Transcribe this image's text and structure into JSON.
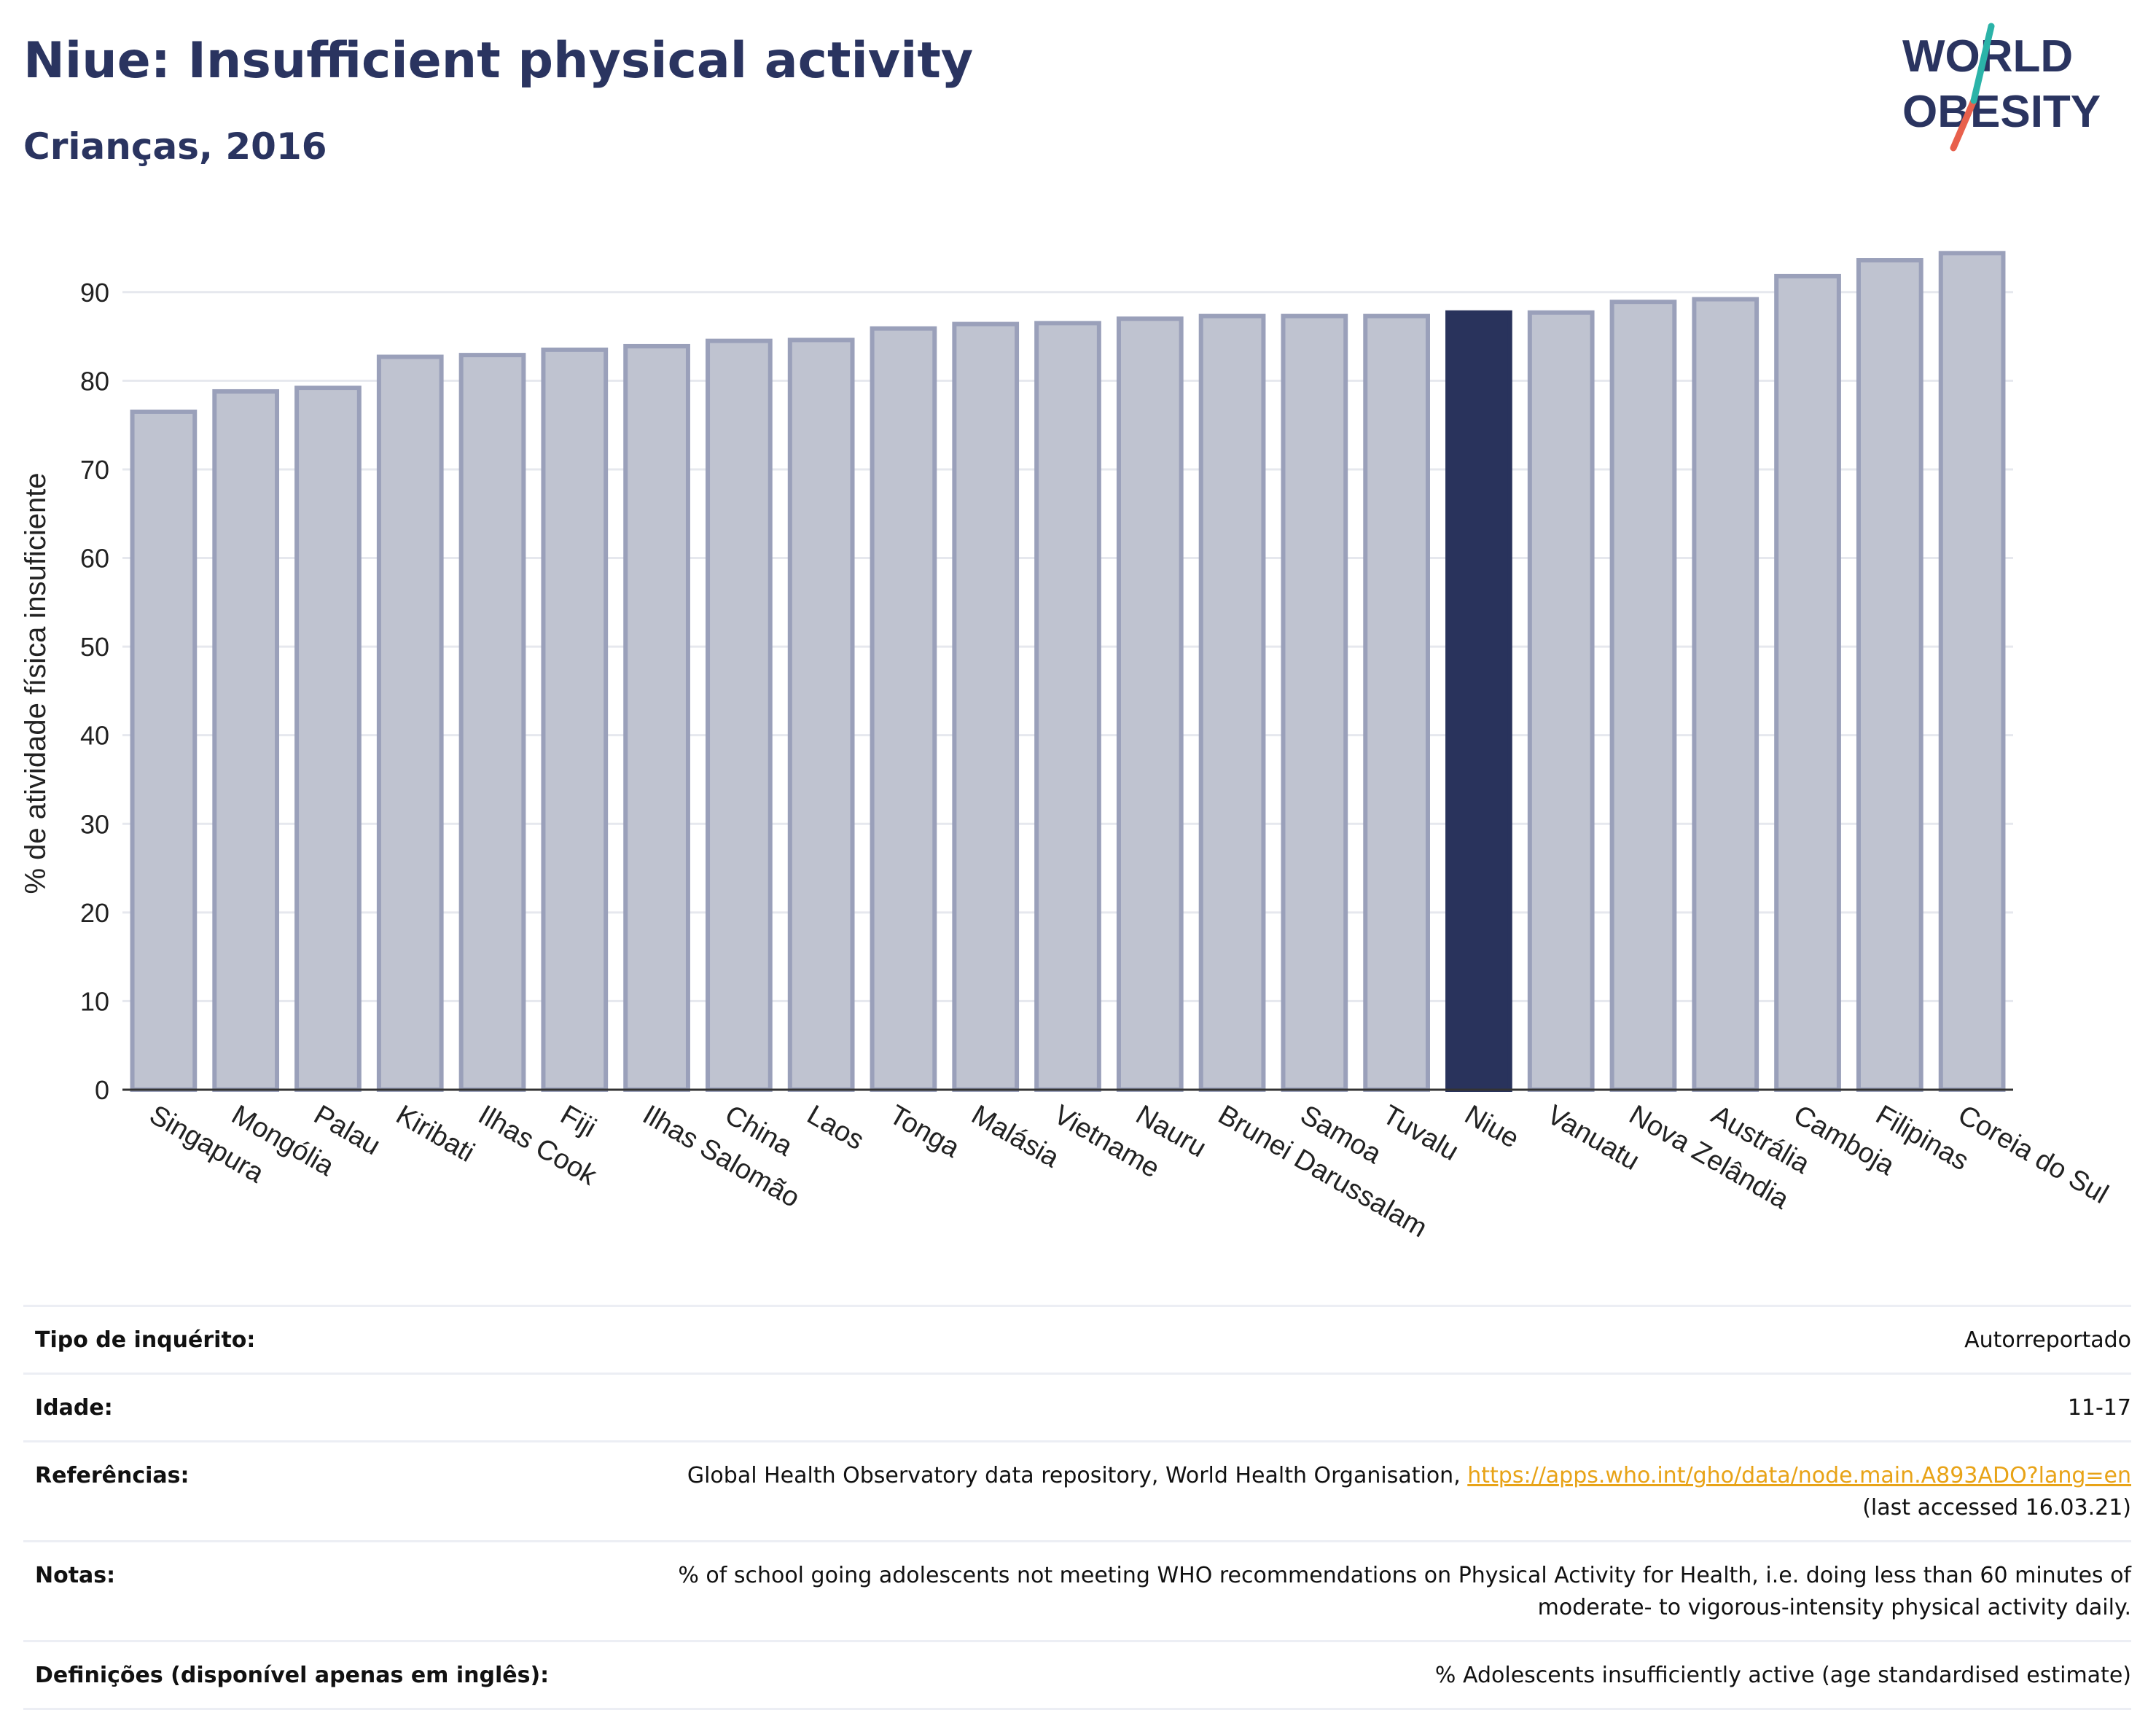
{
  "header": {
    "title": "Niue: Insufficient physical activity",
    "subtitle": "Crianças, 2016"
  },
  "logo": {
    "line1": "WORLD",
    "line2": "OBESITY"
  },
  "colors": {
    "highlight": "#29335c",
    "bar": "#bfc3d0",
    "bar_outline": "#9aa0ba",
    "title": "#2a3460",
    "link": "#e8a317"
  },
  "chart_data": {
    "type": "bar",
    "ylabel": "% de atividade física insuficiente",
    "xlabel": "",
    "ylim": [
      0,
      95
    ],
    "yticks": [
      0,
      10,
      20,
      30,
      40,
      50,
      60,
      70,
      80,
      90
    ],
    "grid": true,
    "highlight": "Niue",
    "categories": [
      "Singapura",
      "Mongólia",
      "Palau",
      "Kiribati",
      "Ilhas Cook",
      "Fiji",
      "Ilhas Salomão",
      "China",
      "Laos",
      "Tonga",
      "Malásia",
      "Vietname",
      "Nauru",
      "Brunei Darussalam",
      "Samoa",
      "Tuvalu",
      "Niue",
      "Vanuatu",
      "Nova Zelândia",
      "Austrália",
      "Camboja",
      "Filipinas",
      "Coreia do Sul"
    ],
    "values": [
      76.5,
      78.8,
      79.2,
      82.7,
      82.9,
      83.5,
      83.9,
      84.5,
      84.6,
      85.9,
      86.4,
      86.5,
      87.0,
      87.3,
      87.3,
      87.3,
      87.7,
      87.7,
      88.9,
      89.2,
      91.8,
      93.6,
      94.4
    ]
  },
  "details": [
    {
      "label": "Tipo de inquérito:",
      "value": "Autorreportado"
    },
    {
      "label": "Idade:",
      "value": "11-17"
    },
    {
      "label": "Referências:",
      "value": "Global Health Observatory data repository, World Health Organisation, ",
      "link": "https://apps.who.int/gho/data/node.main.A893ADO?lang=en",
      "value2": "(last accessed 16.03.21)"
    },
    {
      "label": "Notas:",
      "value": "% of school going adolescents not meeting WHO recommendations on Physical Activity for Health, i.e. doing less than 60 minutes of moderate- to vigorous-intensity physical activity daily."
    },
    {
      "label": "Definições (disponível apenas em inglês):",
      "value": "% Adolescents insufficiently active (age standardised estimate)"
    }
  ]
}
